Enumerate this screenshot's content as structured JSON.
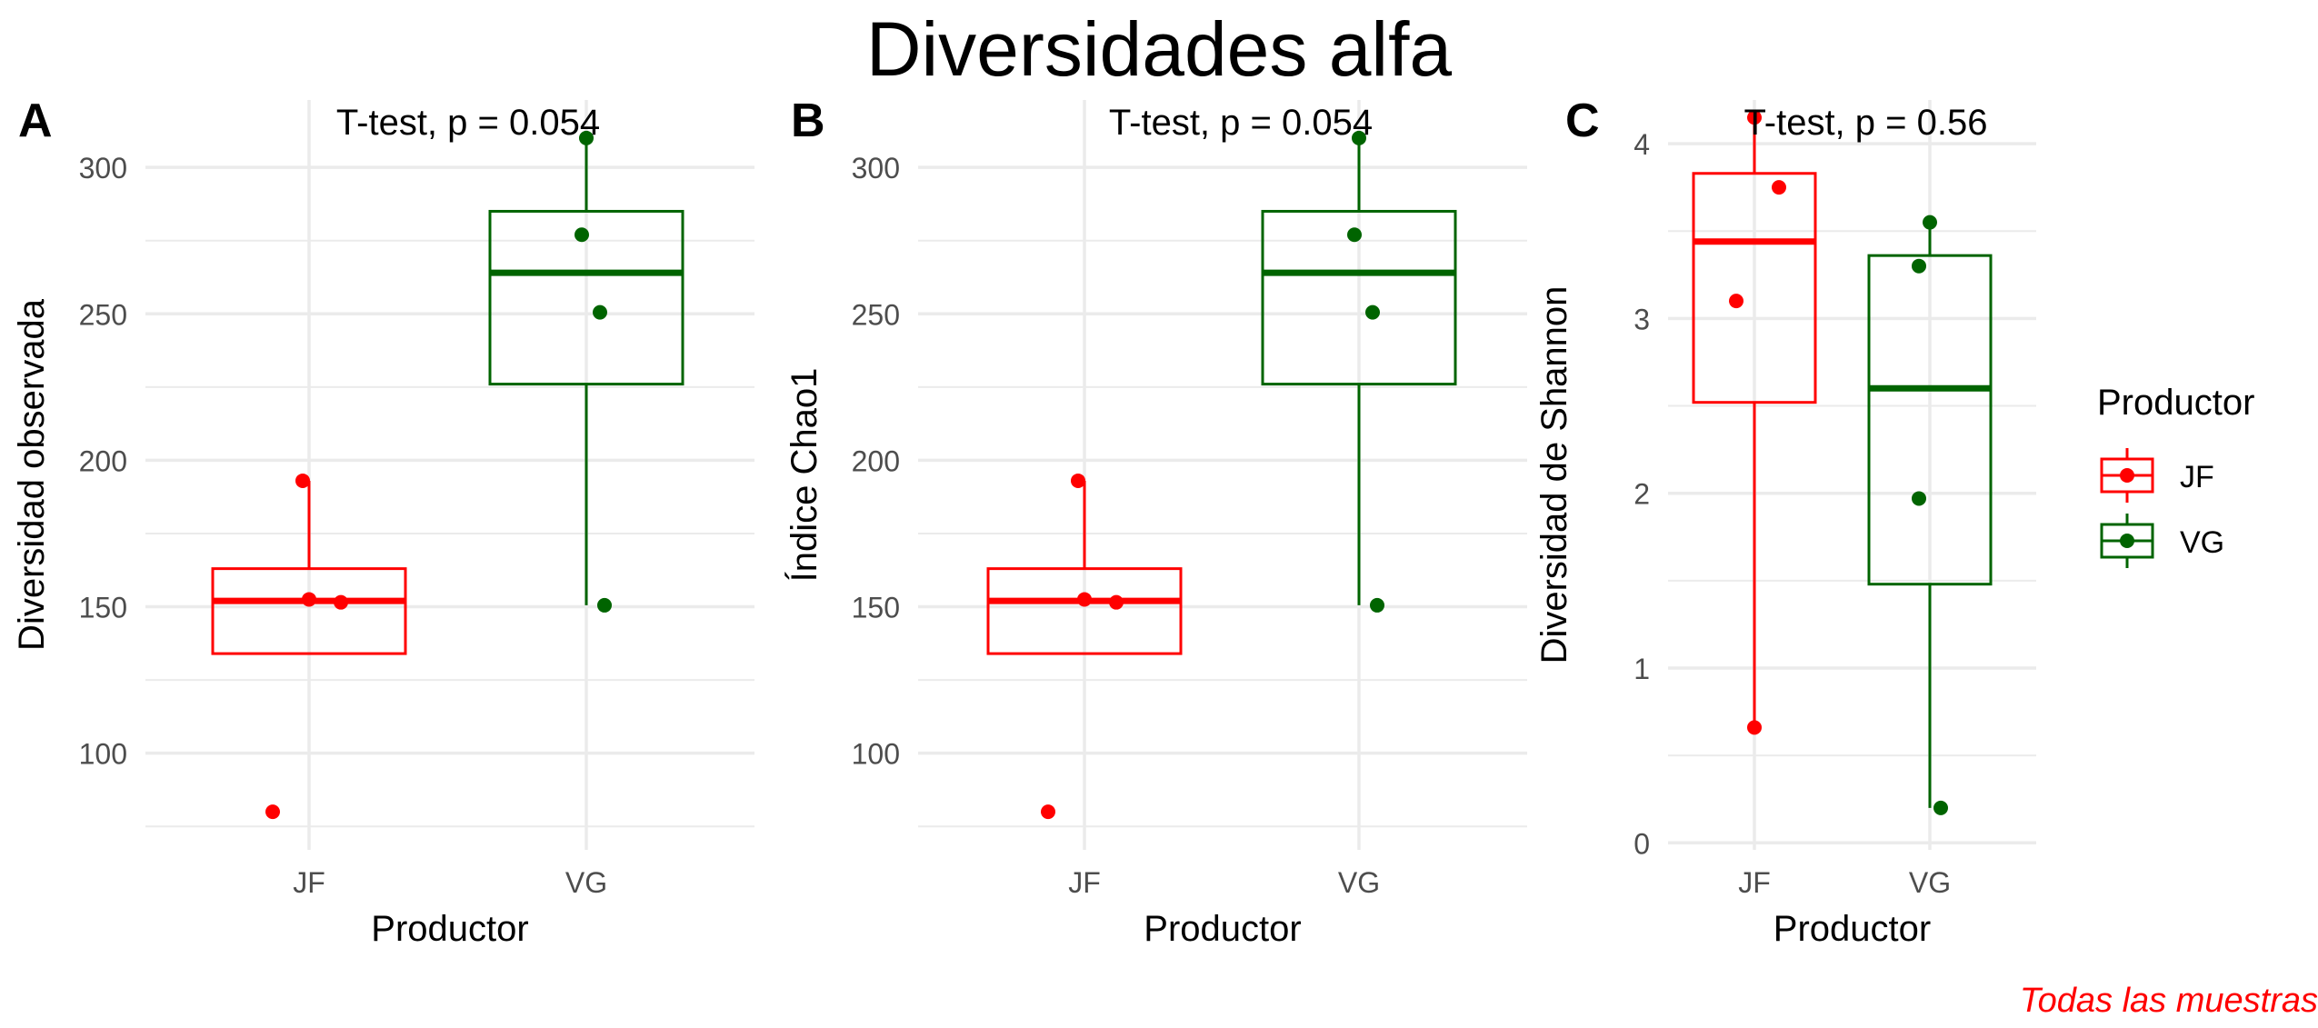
{
  "title": "Diversidades alfa",
  "caption": "Todas las muestras",
  "colors": {
    "JF": "#ff0000",
    "VG": "#006400",
    "grid": "#ebebeb",
    "text": "#000000",
    "tick": "#4d4d4d"
  },
  "legend": {
    "title": "Productor",
    "position": "right",
    "items": [
      {
        "label": "JF",
        "color": "#ff0000"
      },
      {
        "label": "VG",
        "color": "#006400"
      }
    ]
  },
  "chart_data": [
    {
      "panel": "A",
      "type": "box",
      "annotation": "T-test, p = 0.054",
      "xlabel": "Productor",
      "ylabel": "Diversidad observada",
      "categories": [
        "JF",
        "VG"
      ],
      "ylim": [
        67,
        323
      ],
      "yticks": [
        100,
        150,
        200,
        250,
        300
      ],
      "grid": true,
      "boxes": [
        {
          "group": "JF",
          "q1": 134,
          "median": 152,
          "q3": 163,
          "whisker_low": 134,
          "whisker_high": 193,
          "points": [
            193,
            152.5,
            151.5,
            80
          ]
        },
        {
          "group": "VG",
          "q1": 226,
          "median": 264,
          "q3": 285,
          "whisker_low": 150.5,
          "whisker_high": 310,
          "points": [
            310,
            277,
            250.5,
            150.5
          ]
        }
      ]
    },
    {
      "panel": "B",
      "type": "box",
      "annotation": "T-test, p = 0.054",
      "xlabel": "Productor",
      "ylabel": "Índice Chao1",
      "categories": [
        "JF",
        "VG"
      ],
      "ylim": [
        67,
        323
      ],
      "yticks": [
        100,
        150,
        200,
        250,
        300
      ],
      "grid": true,
      "boxes": [
        {
          "group": "JF",
          "q1": 134,
          "median": 152,
          "q3": 163,
          "whisker_low": 134,
          "whisker_high": 193,
          "points": [
            193,
            152.5,
            151.5,
            80
          ]
        },
        {
          "group": "VG",
          "q1": 226,
          "median": 264,
          "q3": 285,
          "whisker_low": 150.5,
          "whisker_high": 310,
          "points": [
            310,
            277,
            250.5,
            150.5
          ]
        }
      ]
    },
    {
      "panel": "C",
      "type": "box",
      "annotation": "T-test, p = 0.56",
      "xlabel": "Productor",
      "ylabel": "Diversidad de Shannon",
      "categories": [
        "JF",
        "VG"
      ],
      "ylim": [
        -0.04,
        4.25
      ],
      "yticks": [
        0,
        1,
        2,
        3,
        4
      ],
      "grid": true,
      "boxes": [
        {
          "group": "JF",
          "q1": 2.52,
          "median": 3.44,
          "q3": 3.83,
          "whisker_low": 0.66,
          "whisker_high": 4.15,
          "points": [
            4.15,
            3.75,
            3.1,
            0.66
          ]
        },
        {
          "group": "VG",
          "q1": 1.48,
          "median": 2.6,
          "q3": 3.36,
          "whisker_low": 0.2,
          "whisker_high": 3.55,
          "points": [
            3.55,
            3.3,
            1.97,
            0.2
          ]
        }
      ]
    }
  ]
}
